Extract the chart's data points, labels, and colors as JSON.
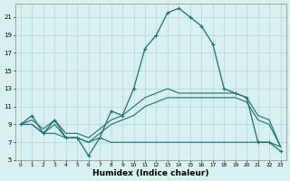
{
  "xlabel": "Humidex (Indice chaleur)",
  "bg_color": "#d8f0f0",
  "line_color": "#1a7070",
  "grid_color": "#afd8d8",
  "xlim": [
    -0.5,
    23.5
  ],
  "ylim": [
    5,
    22.5
  ],
  "yticks": [
    5,
    7,
    9,
    11,
    13,
    15,
    17,
    19,
    21
  ],
  "xticks": [
    0,
    1,
    2,
    3,
    4,
    5,
    6,
    7,
    8,
    9,
    10,
    11,
    12,
    13,
    14,
    15,
    16,
    17,
    18,
    19,
    20,
    21,
    22,
    23
  ],
  "line_main_x": [
    0,
    1,
    2,
    3,
    4,
    5,
    6,
    7,
    8,
    9,
    10,
    11,
    12,
    13,
    14,
    15,
    16,
    17,
    18,
    19,
    20,
    21,
    22,
    23
  ],
  "line_main_y": [
    9,
    10,
    8,
    9.5,
    7.5,
    7.5,
    5.5,
    7.5,
    10.5,
    10,
    13,
    17.5,
    19,
    21.5,
    22,
    21,
    20,
    18,
    13,
    12.5,
    12,
    7,
    7,
    6
  ],
  "line_flat_x": [
    0,
    1,
    2,
    3,
    4,
    5,
    6,
    7,
    8,
    9,
    10,
    11,
    12,
    13,
    14,
    15,
    16,
    17,
    18,
    19,
    20,
    21,
    22,
    23
  ],
  "line_flat_y": [
    9,
    9,
    8,
    8,
    7.5,
    7.5,
    7,
    7.5,
    7,
    7,
    7,
    7,
    7,
    7,
    7,
    7,
    7,
    7,
    7,
    7,
    7,
    7,
    7,
    6.5
  ],
  "line_upper_x": [
    0,
    1,
    2,
    3,
    4,
    5,
    6,
    7,
    8,
    9,
    10,
    11,
    12,
    13,
    14,
    15,
    16,
    17,
    18,
    19,
    20,
    21,
    22,
    23
  ],
  "line_upper_y": [
    9,
    9.5,
    8.5,
    9.5,
    8,
    8,
    7.5,
    8.5,
    9.5,
    10,
    11,
    12,
    12.5,
    13,
    12.5,
    12.5,
    12.5,
    12.5,
    12.5,
    12.5,
    12,
    10,
    9.5,
    6.5
  ],
  "line_lower_x": [
    0,
    1,
    2,
    3,
    4,
    5,
    6,
    7,
    8,
    9,
    10,
    11,
    12,
    13,
    14,
    15,
    16,
    17,
    18,
    19,
    20,
    21,
    22,
    23
  ],
  "line_lower_y": [
    9,
    9,
    8,
    9,
    7.5,
    7.5,
    7,
    8,
    9,
    9.5,
    10,
    11,
    11.5,
    12,
    12,
    12,
    12,
    12,
    12,
    12,
    11.5,
    9.5,
    9,
    6.5
  ]
}
